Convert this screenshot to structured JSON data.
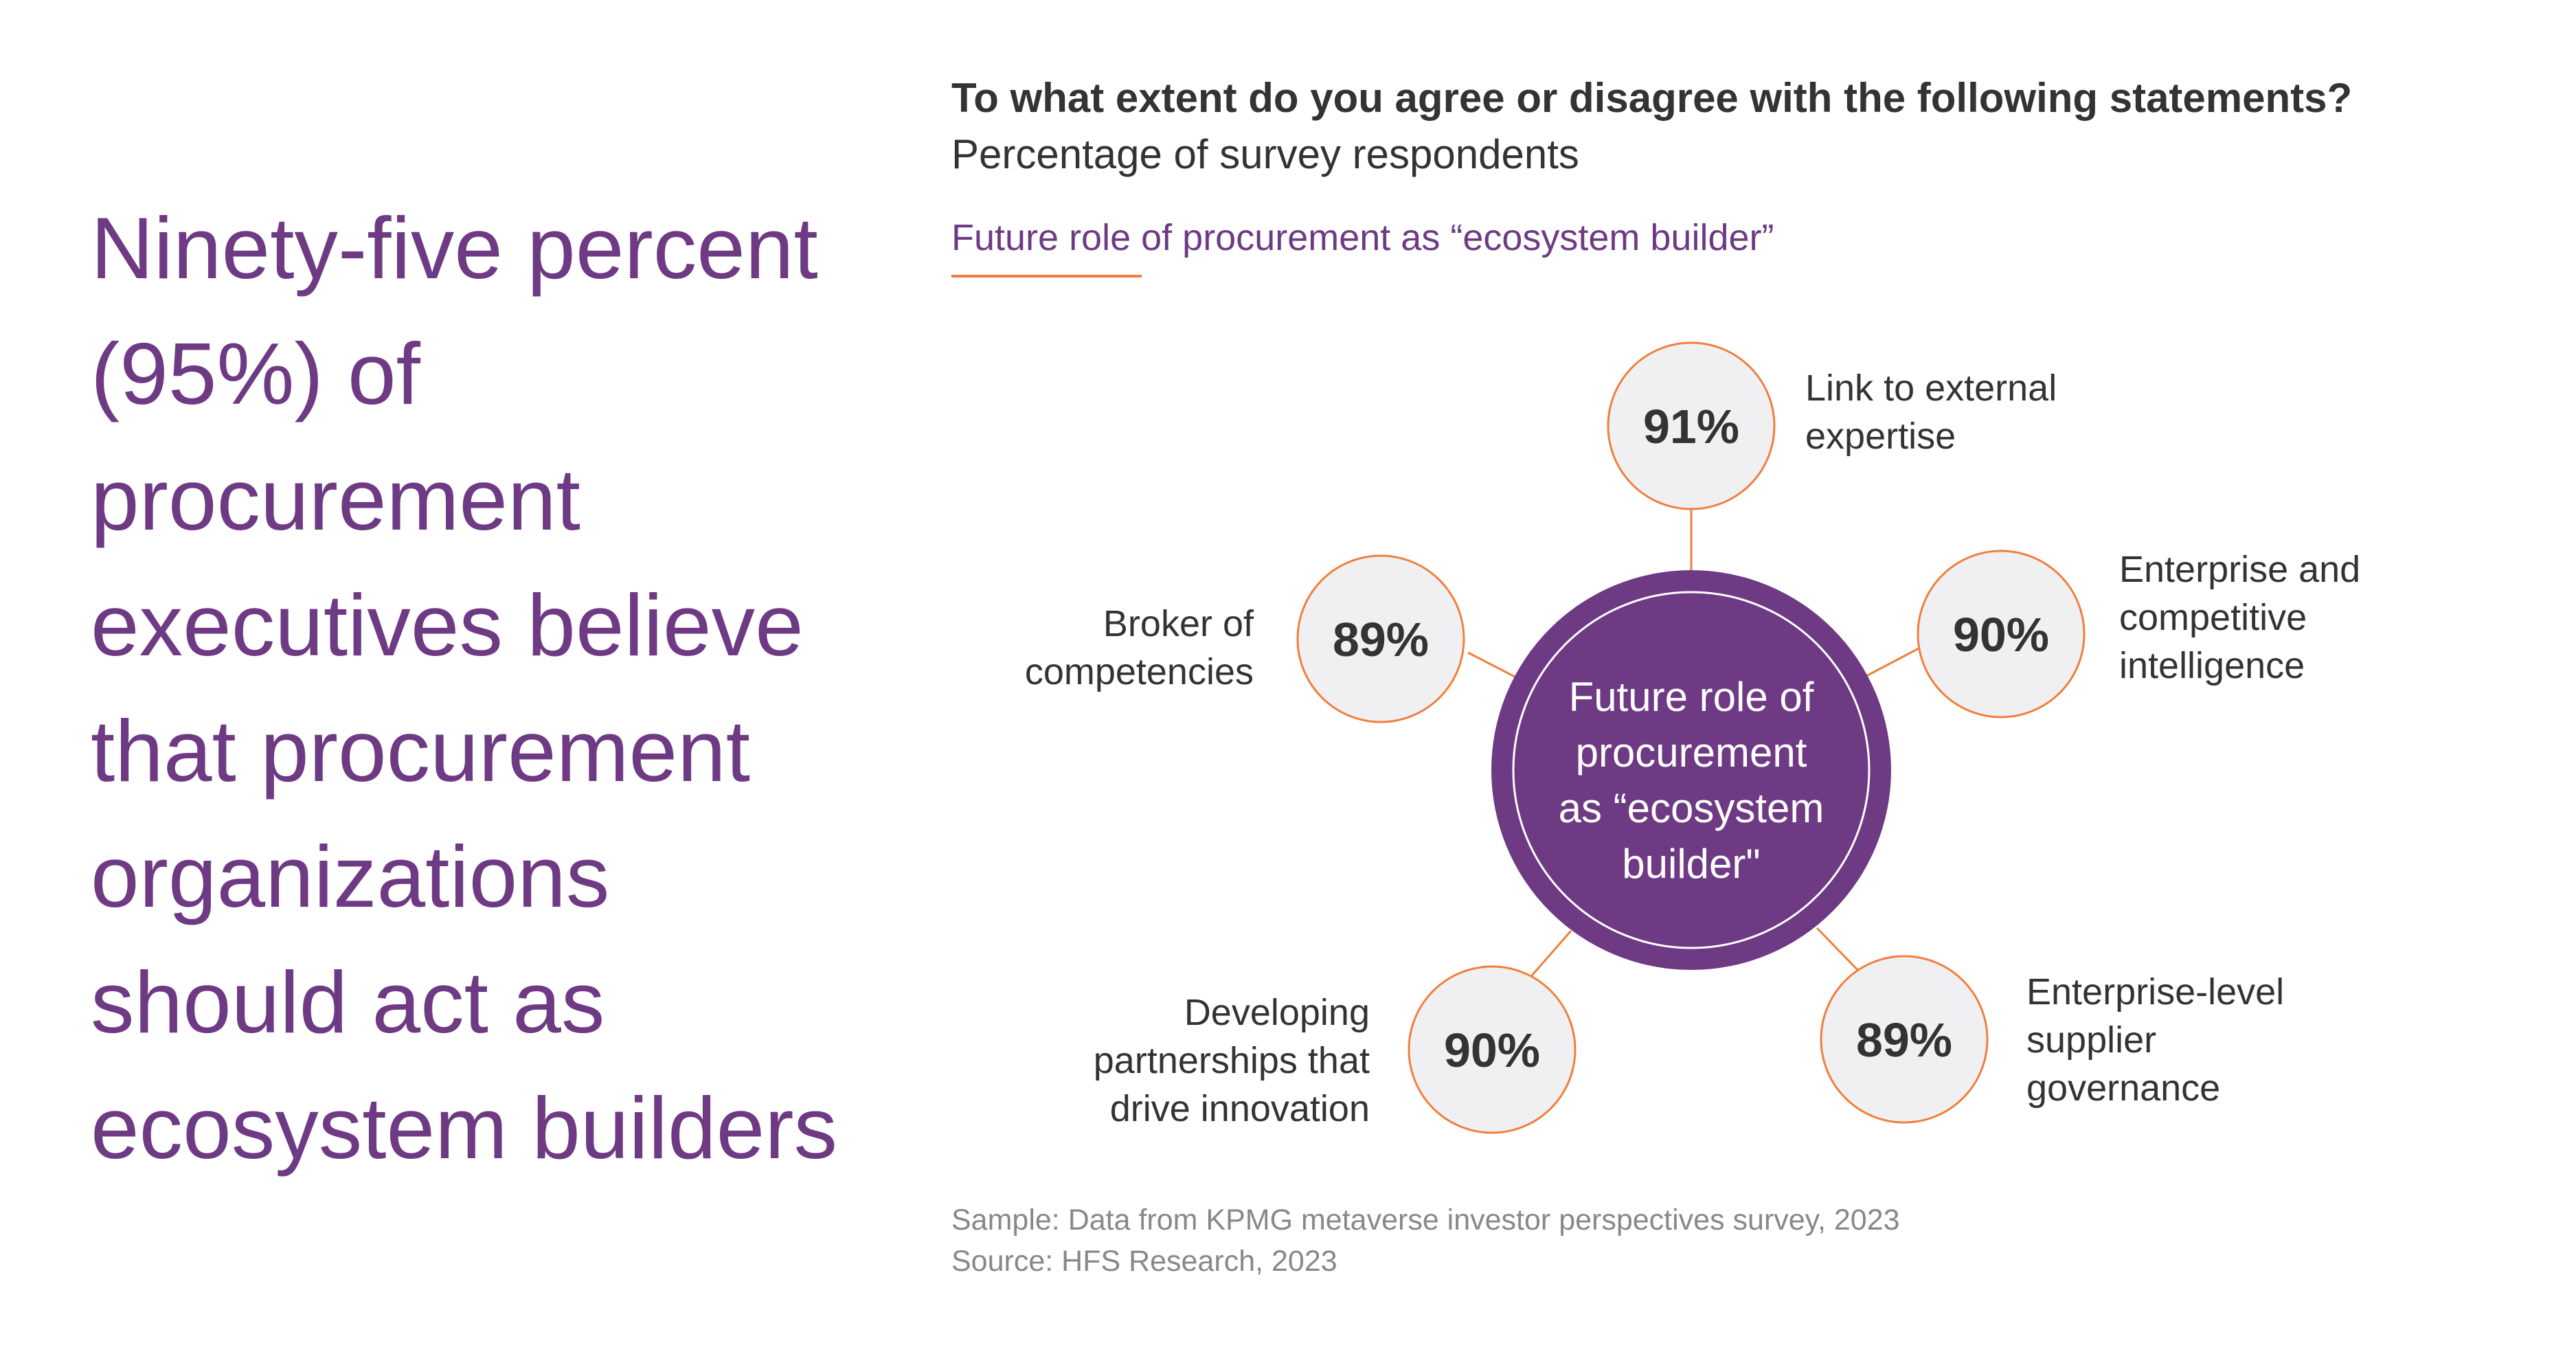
{
  "headline": {
    "lines": [
      "Ninety-five percent",
      "(95%) of",
      "procurement",
      "executives believe",
      "that procurement",
      "organizations",
      "should act as",
      "ecosystem builders"
    ]
  },
  "question": {
    "title": "To what extent do you agree or disagree with the following statements?",
    "subtitle": "Percentage of survey respondents"
  },
  "section": {
    "label": "Future role of procurement as “ecosystem builder”"
  },
  "center": {
    "lines": [
      "Future role of",
      "procurement",
      "as “ecosystem",
      "builder\""
    ]
  },
  "nodes": [
    {
      "value": "91%",
      "label_lines": [
        "Link to external",
        "expertise"
      ]
    },
    {
      "value": "90%",
      "label_lines": [
        "Enterprise and",
        "competitive",
        "intelligence"
      ]
    },
    {
      "value": "89%",
      "label_lines": [
        "Enterprise-level",
        "supplier",
        "governance"
      ]
    },
    {
      "value": "90%",
      "label_lines": [
        "Developing",
        "partnerships that",
        "drive innovation"
      ]
    },
    {
      "value": "89%",
      "label_lines": [
        "Broker of",
        "competencies"
      ]
    }
  ],
  "footnotes": {
    "sample": "Sample: Data from KPMG metaverse investor perspectives survey, 2023",
    "source": "Source: HFS Research, 2023"
  },
  "colors": {
    "accent_purple": "#6e3a84",
    "accent_orange": "#f07f3c",
    "node_fill": "#f0f0f2",
    "text_dark": "#333333",
    "text_muted": "#888888"
  }
}
